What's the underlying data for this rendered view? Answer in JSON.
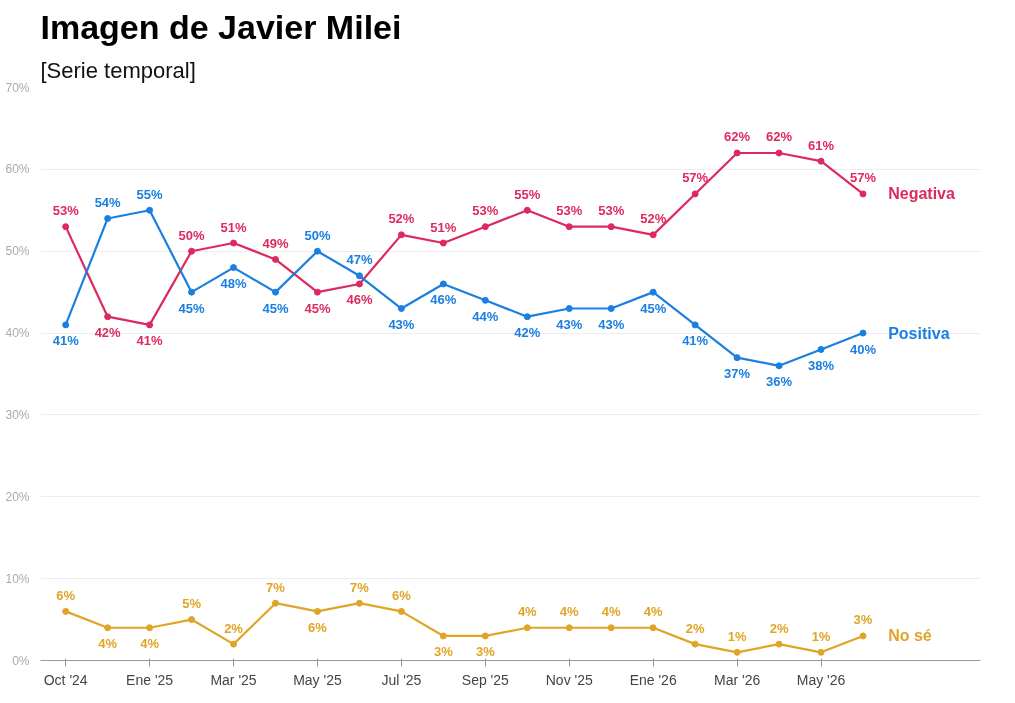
{
  "chart_data": {
    "type": "line",
    "title": "Imagen de Javier Milei",
    "subtitle": "[Serie temporal]",
    "categories": [
      "Oct '24",
      null,
      "Ene '25",
      null,
      "Mar '25",
      null,
      "May '25",
      null,
      "Jul '25",
      null,
      "Sep '25",
      null,
      "Nov '25",
      null,
      "Ene '26",
      null,
      "Mar '26",
      null,
      "May '26",
      null
    ],
    "series": [
      {
        "name": "Negativa",
        "color": "#dc2a5e",
        "values": [
          53,
          42,
          41,
          50,
          51,
          49,
          45,
          46,
          52,
          51,
          53,
          55,
          53,
          53,
          52,
          57,
          62,
          62,
          61,
          57
        ],
        "value_labels": [
          "53%",
          "42%",
          "41%",
          "50%",
          "51%",
          "49%",
          "45%",
          "46%",
          "52%",
          "51%",
          "53%",
          "55%",
          "53%",
          "53%",
          "52%",
          "57%",
          "62%",
          "62%",
          "61%",
          "57%"
        ]
      },
      {
        "name": "Positiva",
        "color": "#1a7fe0",
        "values": [
          41,
          54,
          55,
          45,
          48,
          45,
          50,
          47,
          43,
          46,
          44,
          42,
          43,
          43,
          45,
          41,
          37,
          36,
          38,
          40
        ],
        "value_labels": [
          "41%",
          "54%",
          "55%",
          "45%",
          "48%",
          "45%",
          "50%",
          "47%",
          "43%",
          "46%",
          "44%",
          "42%",
          "43%",
          "43%",
          "45%",
          "41%",
          "37%",
          "36%",
          "38%",
          "40%"
        ]
      },
      {
        "name": "No sé",
        "color": "#e0a526",
        "values": [
          6,
          4,
          4,
          5,
          2,
          7,
          6,
          7,
          6,
          3,
          3,
          4,
          4,
          4,
          4,
          2,
          1,
          2,
          1,
          3
        ],
        "value_labels": [
          "6%",
          "4%",
          "4%",
          "5%",
          "2%",
          "7%",
          "6%",
          "7%",
          "6%",
          "3%",
          "3%",
          "4%",
          "4%",
          "4%",
          "4%",
          "2%",
          "1%",
          "2%",
          "1%",
          "3%"
        ]
      }
    ],
    "ylim": [
      0,
      70
    ],
    "yticks": [
      {
        "value": 0,
        "label": "0%"
      },
      {
        "value": 10,
        "label": "10%"
      },
      {
        "value": 20,
        "label": "20%"
      },
      {
        "value": 30,
        "label": "30%"
      },
      {
        "value": 40,
        "label": "40%"
      },
      {
        "value": 50,
        "label": "50%"
      },
      {
        "value": 60,
        "label": "60%"
      },
      {
        "value": 70,
        "label": "70%"
      }
    ],
    "grid": "y",
    "legend": false,
    "marker": "circle",
    "line_style": "solid"
  }
}
